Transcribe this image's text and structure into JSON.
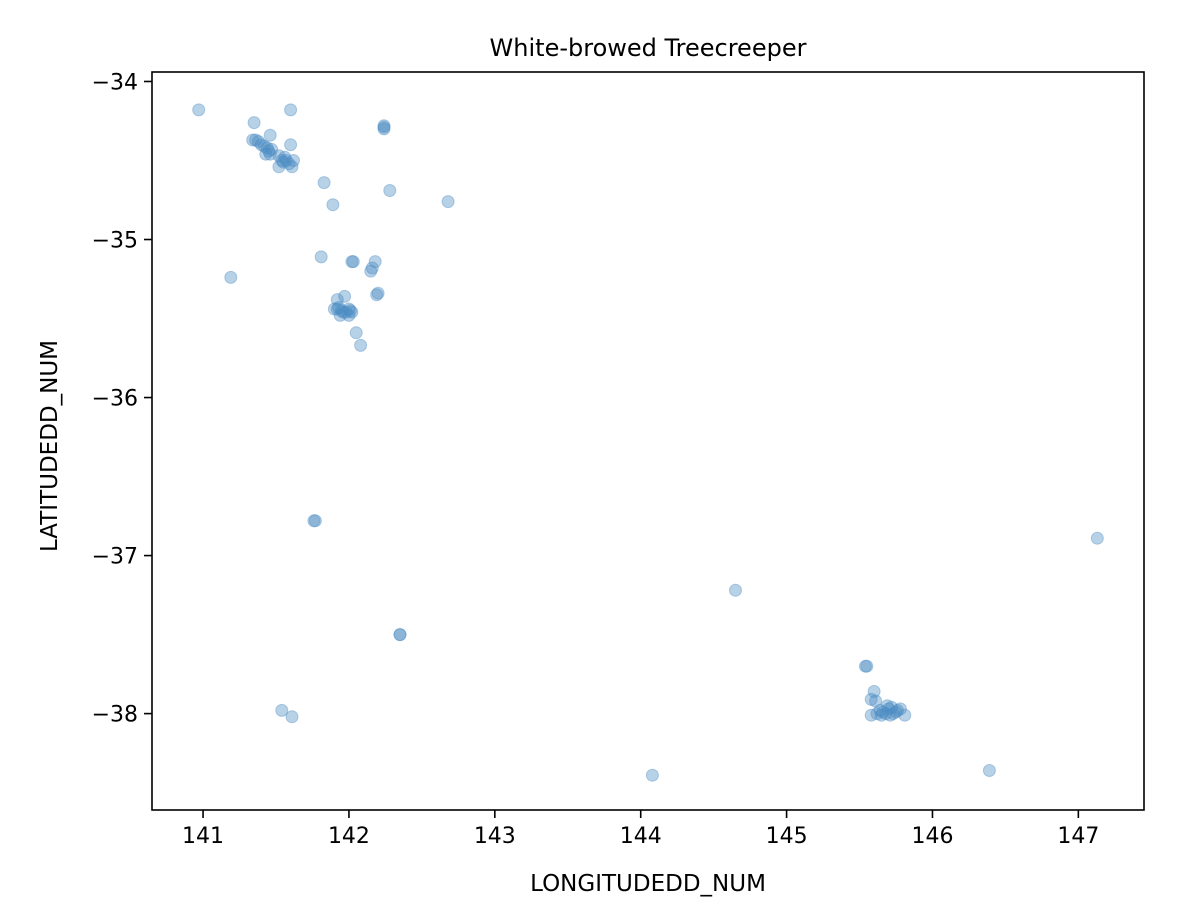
{
  "chart_data": {
    "type": "scatter",
    "title": "White-browed Treecreeper",
    "xlabel": "LONGITUDEDD_NUM",
    "ylabel": "LATITUDEDD_NUM",
    "xlim": [
      140.65,
      147.45
    ],
    "ylim": [
      -38.61,
      -33.94
    ],
    "xticks": [
      141,
      142,
      143,
      144,
      145,
      146,
      147
    ],
    "yticks": [
      -34,
      -35,
      -36,
      -37,
      -38
    ],
    "xtick_labels": [
      "141",
      "142",
      "143",
      "144",
      "145",
      "146",
      "147"
    ],
    "ytick_labels": [
      "−34",
      "−35",
      "−36",
      "−37",
      "−38"
    ],
    "grid": false,
    "marker_color": "#4a8bc2",
    "marker_alpha": 0.4,
    "points": [
      [
        140.97,
        -34.18
      ],
      [
        141.35,
        -34.26
      ],
      [
        141.6,
        -34.18
      ],
      [
        141.46,
        -34.34
      ],
      [
        141.6,
        -34.4
      ],
      [
        141.34,
        -34.37
      ],
      [
        141.36,
        -34.37
      ],
      [
        141.38,
        -34.38
      ],
      [
        141.4,
        -34.4
      ],
      [
        141.42,
        -34.41
      ],
      [
        141.44,
        -34.42
      ],
      [
        141.45,
        -34.44
      ],
      [
        141.47,
        -34.43
      ],
      [
        141.43,
        -34.46
      ],
      [
        141.46,
        -34.46
      ],
      [
        141.52,
        -34.47
      ],
      [
        141.54,
        -34.5
      ],
      [
        141.55,
        -34.51
      ],
      [
        141.57,
        -34.5
      ],
      [
        141.59,
        -34.52
      ],
      [
        141.62,
        -34.5
      ],
      [
        141.61,
        -34.54
      ],
      [
        141.52,
        -34.54
      ],
      [
        141.56,
        -34.48
      ],
      [
        142.24,
        -34.28
      ],
      [
        142.24,
        -34.3
      ],
      [
        142.24,
        -34.29
      ],
      [
        141.83,
        -34.64
      ],
      [
        141.89,
        -34.78
      ],
      [
        142.28,
        -34.69
      ],
      [
        142.68,
        -34.76
      ],
      [
        141.19,
        -35.24
      ],
      [
        141.81,
        -35.11
      ],
      [
        142.02,
        -35.14
      ],
      [
        142.03,
        -35.14
      ],
      [
        142.18,
        -35.14
      ],
      [
        142.16,
        -35.18
      ],
      [
        142.15,
        -35.2
      ],
      [
        142.2,
        -35.34
      ],
      [
        142.19,
        -35.35
      ],
      [
        141.92,
        -35.38
      ],
      [
        141.97,
        -35.36
      ],
      [
        141.9,
        -35.44
      ],
      [
        141.92,
        -35.44
      ],
      [
        141.93,
        -35.43
      ],
      [
        141.95,
        -35.45
      ],
      [
        141.96,
        -35.46
      ],
      [
        141.98,
        -35.46
      ],
      [
        142.0,
        -35.44
      ],
      [
        142.01,
        -35.45
      ],
      [
        142.02,
        -35.46
      ],
      [
        141.94,
        -35.48
      ],
      [
        142.0,
        -35.48
      ],
      [
        142.05,
        -35.59
      ],
      [
        142.08,
        -35.67
      ],
      [
        141.76,
        -36.78
      ],
      [
        141.77,
        -36.78
      ],
      [
        142.35,
        -37.5
      ],
      [
        142.35,
        -37.5
      ],
      [
        141.54,
        -37.98
      ],
      [
        141.61,
        -38.02
      ],
      [
        144.08,
        -38.39
      ],
      [
        144.65,
        -37.22
      ],
      [
        147.13,
        -36.89
      ],
      [
        145.55,
        -37.7
      ],
      [
        145.54,
        -37.7
      ],
      [
        145.6,
        -37.86
      ],
      [
        145.58,
        -37.91
      ],
      [
        145.61,
        -37.92
      ],
      [
        145.58,
        -38.01
      ],
      [
        145.62,
        -38.0
      ],
      [
        145.64,
        -37.98
      ],
      [
        145.66,
        -37.99
      ],
      [
        145.68,
        -38.0
      ],
      [
        145.7,
        -37.97
      ],
      [
        145.71,
        -38.01
      ],
      [
        145.73,
        -38.0
      ],
      [
        145.75,
        -37.99
      ],
      [
        145.76,
        -37.98
      ],
      [
        145.78,
        -37.97
      ],
      [
        145.81,
        -38.01
      ],
      [
        145.69,
        -37.95
      ],
      [
        145.72,
        -37.96
      ],
      [
        145.65,
        -38.01
      ],
      [
        146.39,
        -38.36
      ]
    ]
  }
}
